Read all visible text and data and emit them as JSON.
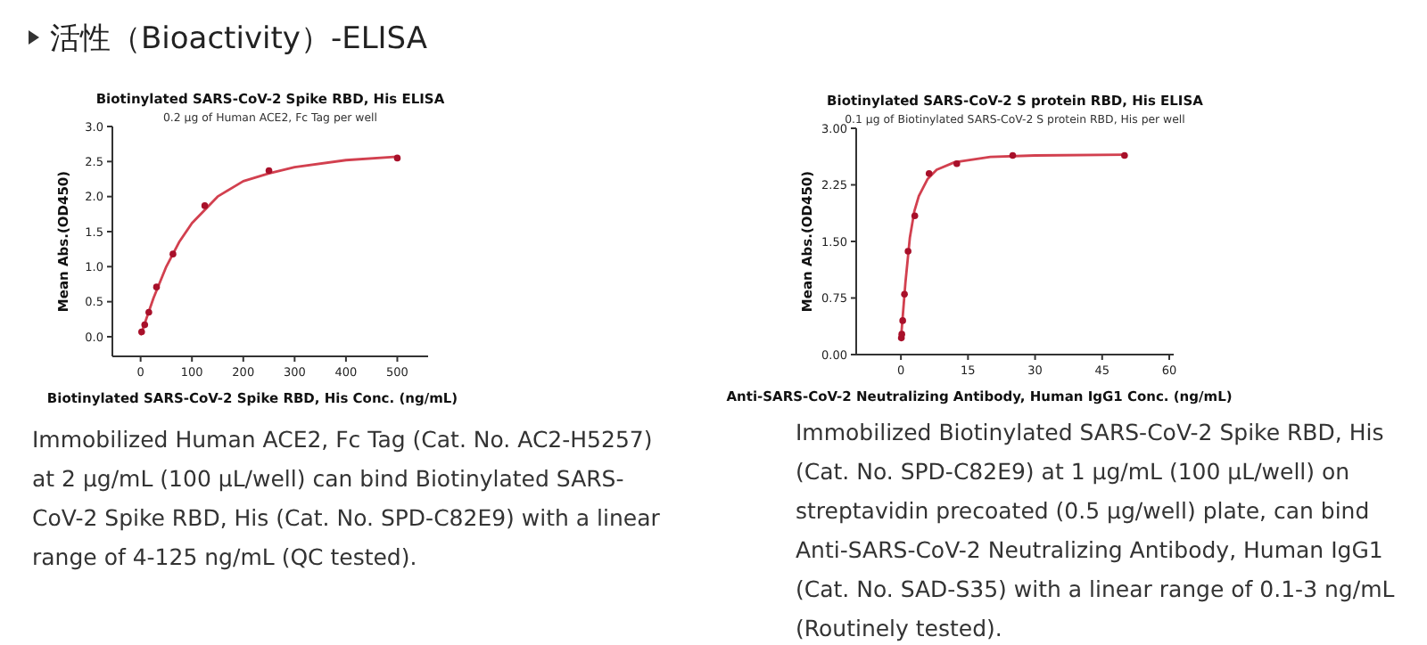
{
  "chart_data": [
    {
      "type": "scatter",
      "title": "Biotinylated SARS-CoV-2 Spike RBD, His ELISA",
      "subtitle": "0.2 μg of Human ACE2, Fc Tag per well",
      "xlabel": "Biotinylated SARS-CoV-2 Spike RBD, His Conc. (ng/mL)",
      "ylabel": "Mean Abs.(OD450)",
      "xlim": [
        -55,
        560
      ],
      "ylim": [
        -0.28,
        3.0
      ],
      "xticks": [
        0,
        100,
        200,
        300,
        400,
        500
      ],
      "yticks": [
        {
          "value": 0,
          "label": "0.0"
        },
        {
          "value": 0.5,
          "label": "0.5"
        },
        {
          "value": 1,
          "label": "1.0"
        },
        {
          "value": 1.5,
          "label": "1.5"
        },
        {
          "value": 2,
          "label": "2.0"
        },
        {
          "value": 2.5,
          "label": "2.5"
        },
        {
          "value": 3,
          "label": "3.0"
        }
      ],
      "series": [
        {
          "type": "scatter",
          "marker": "circle",
          "color": "#a8102a",
          "x": [
            2,
            8,
            16,
            31,
            63,
            125,
            250,
            500
          ],
          "values": [
            0.07,
            0.17,
            0.35,
            0.71,
            1.18,
            1.87,
            2.37,
            2.55
          ]
        },
        {
          "type": "line",
          "marker": "none",
          "color": "#d2404f",
          "x": [
            0,
            25,
            50,
            75,
            100,
            150,
            200,
            250,
            300,
            400,
            500
          ],
          "values": [
            0.02,
            0.55,
            1.0,
            1.35,
            1.62,
            2.0,
            2.22,
            2.33,
            2.42,
            2.52,
            2.57
          ]
        }
      ],
      "annotations": [
        "活性（Bioactivity）-ELISA",
        "Immobilized Human ACE2, Fc Tag (Cat. No. AC2-H5257) at 2 μg/mL (100 μL/well) can bind Biotinylated SARS-CoV-2 Spike RBD, His (Cat. No. SPD-C82E9) with a linear range of 4-125 ng/mL (QC tested)."
      ]
    },
    {
      "type": "scatter",
      "title": "Biotinylated SARS-CoV-2 S protein RBD, His ELISA",
      "subtitle": "0.1 μg of Biotinylated SARS-CoV-2 S protein RBD, His per well",
      "xlabel": "Anti-SARS-CoV-2 Neutralizing Antibody, Human IgG1 Conc. (ng/mL)",
      "ylabel": "Mean Abs.(OD450)",
      "xlim": [
        -10,
        61
      ],
      "ylim": [
        0,
        3
      ],
      "xticks": [
        0,
        15,
        30,
        45,
        60
      ],
      "yticks": [
        {
          "value": 0,
          "label": "0.00"
        },
        {
          "value": 0.75,
          "label": "0.75"
        },
        {
          "value": 1.5,
          "label": "1.50"
        },
        {
          "value": 2.25,
          "label": "2.25"
        },
        {
          "value": 3,
          "label": "3.00"
        }
      ],
      "series": [
        {
          "type": "scatter",
          "marker": "circle",
          "color": "#a8102a",
          "x": [
            0.1,
            0.2,
            0.4,
            0.8,
            1.6,
            3.1,
            6.3,
            12.5,
            25,
            50
          ],
          "values": [
            0.22,
            0.27,
            0.45,
            0.8,
            1.37,
            1.84,
            2.4,
            2.53,
            2.64,
            2.64
          ]
        },
        {
          "type": "line",
          "marker": "none",
          "color": "#d2404f",
          "x": [
            0,
            1,
            2,
            3,
            4,
            6,
            8,
            12,
            20,
            30,
            50
          ],
          "values": [
            0.2,
            0.95,
            1.55,
            1.9,
            2.1,
            2.33,
            2.45,
            2.55,
            2.62,
            2.64,
            2.65
          ]
        }
      ],
      "annotations": [
        "Immobilized Biotinylated SARS-CoV-2 Spike RBD, His (Cat. No. SPD-C82E9) at 1 μg/mL (100 μL/well) on streptavidin precoated (0.5 μg/well) plate, can bind Anti-SARS-CoV-2 Neutralizing Antibody, Human IgG1 (Cat. No. SAD-S35) with a linear range of 0.1-3 ng/mL (Routinely tested)."
      ]
    }
  ]
}
